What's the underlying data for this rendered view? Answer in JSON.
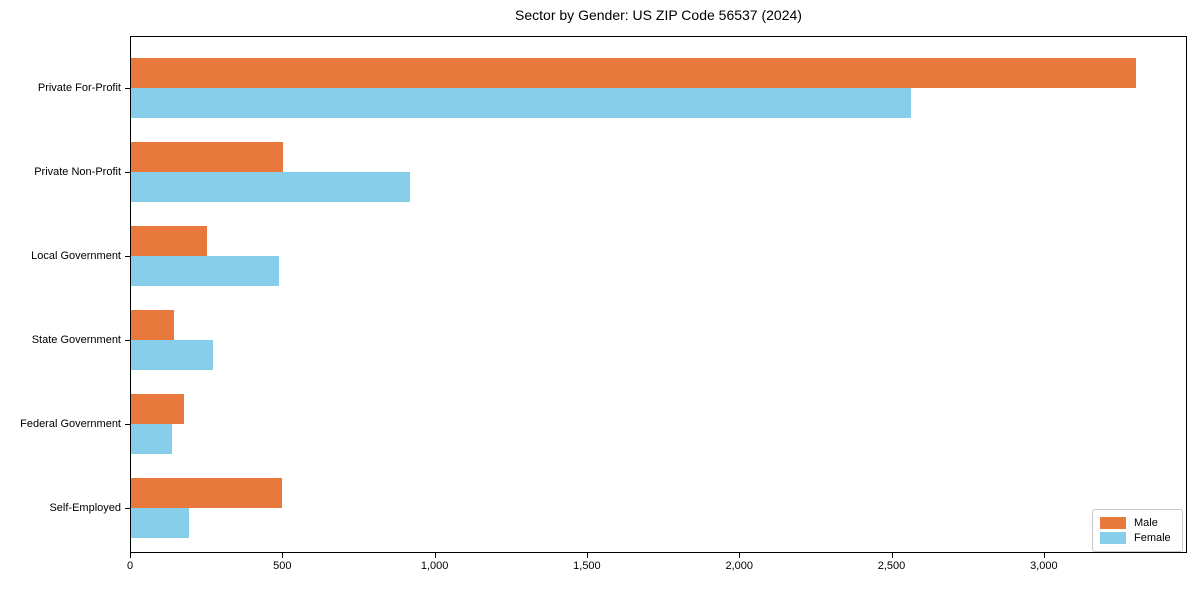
{
  "title": "Sector by Gender: US ZIP Code 56537 (2024)",
  "colors": {
    "male": "#e8793c",
    "female": "#87ceeb",
    "axis": "#000000",
    "legend_border": "#c9c9c9",
    "background": "#ffffff"
  },
  "legend": {
    "position": "lower right",
    "items": [
      {
        "label": "Male",
        "color": "#e8793c"
      },
      {
        "label": "Female",
        "color": "#87ceeb"
      }
    ]
  },
  "chart_data": {
    "type": "bar",
    "orientation": "horizontal",
    "title": "Sector by Gender: US ZIP Code 56537 (2024)",
    "xlabel": "",
    "ylabel": "",
    "categories": [
      "Private For-Profit",
      "Private Non-Profit",
      "Local Government",
      "State Government",
      "Federal Government",
      "Self-Employed"
    ],
    "series": [
      {
        "name": "Male",
        "color": "#e8793c",
        "values": [
          3300,
          500,
          250,
          140,
          175,
          495
        ]
      },
      {
        "name": "Female",
        "color": "#87ceeb",
        "values": [
          2560,
          915,
          485,
          270,
          135,
          190
        ]
      }
    ],
    "xlim": [
      0,
      3470
    ],
    "x_ticks": [
      0,
      500,
      1000,
      1500,
      2000,
      2500,
      3000
    ],
    "x_tick_labels": [
      "0",
      "500",
      "1,000",
      "1,500",
      "2,000",
      "2,500",
      "3,000"
    ],
    "grid": false,
    "legend_position": "lower right"
  }
}
